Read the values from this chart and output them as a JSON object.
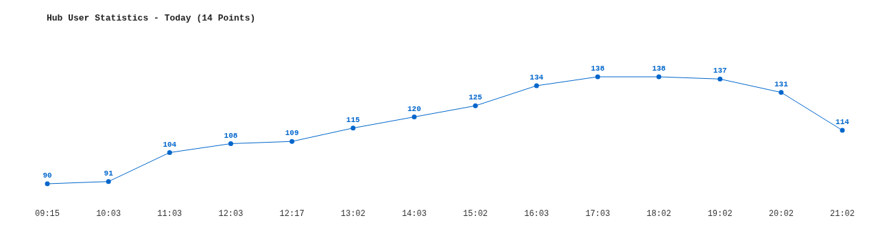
{
  "chart_data": {
    "type": "line",
    "title": "Hub User Statistics - Today (14 Points)",
    "categories": [
      "09:15",
      "10:03",
      "11:03",
      "12:03",
      "12:17",
      "13:02",
      "14:03",
      "15:02",
      "16:03",
      "17:03",
      "18:02",
      "19:02",
      "20:02",
      "21:02"
    ],
    "values": [
      90,
      91,
      104,
      108,
      109,
      115,
      120,
      125,
      134,
      138,
      138,
      137,
      131,
      114
    ],
    "color": "#0066cc",
    "data_labels": true,
    "marker": "circle"
  }
}
